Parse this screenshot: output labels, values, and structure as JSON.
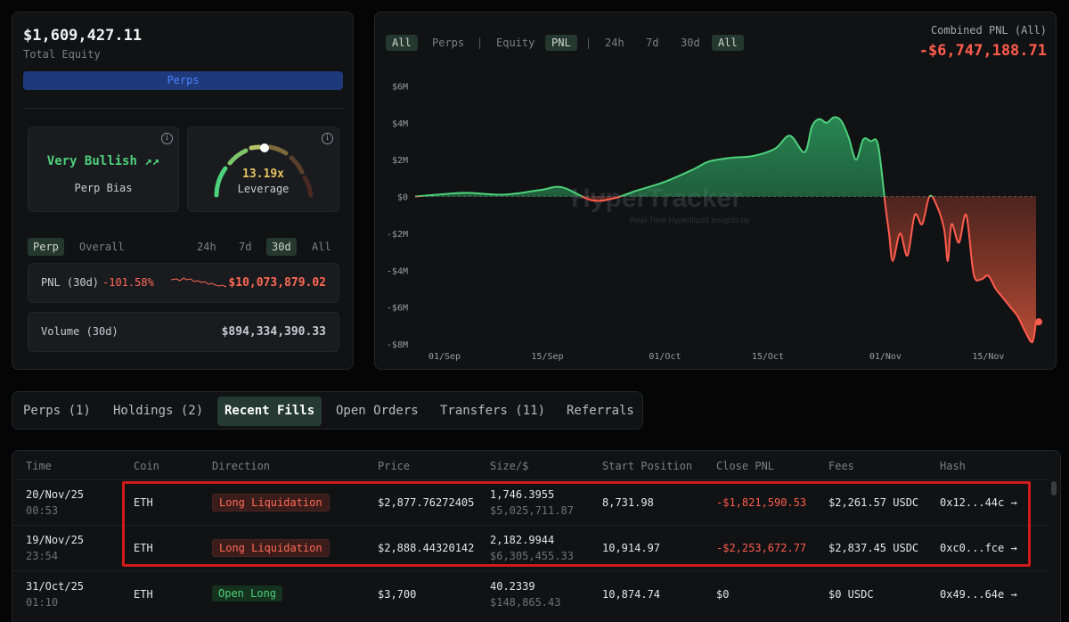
{
  "summary": {
    "total_equity": "$1,609,427.11",
    "total_equity_label": "Total Equity",
    "perps_bar": "Perps",
    "bias": {
      "title": "Very Bullish",
      "label": "Perp Bias"
    },
    "leverage": {
      "value": "13.19x",
      "label": "Leverage",
      "level": 0.55
    },
    "period_tabs": {
      "perp": "Perp",
      "overall": "Overall",
      "d24h": "24h",
      "d7": "7d",
      "d30": "30d",
      "all": "All"
    },
    "pnl": {
      "label": "PNL (30d)",
      "pct": "-101.58%",
      "value": "$10,073,879.02"
    },
    "volume": {
      "label": "Volume (30d)",
      "value": "$894,334,390.33"
    }
  },
  "chart_controls": {
    "all1": "All",
    "perps": "Perps",
    "sep": "|",
    "equity": "Equity",
    "pnl": "PNL",
    "h24": "24h",
    "d7": "7d",
    "d30": "30d",
    "all2": "All"
  },
  "combined": {
    "label": "Combined PNL (All)",
    "value": "-$6,747,188.71"
  },
  "chart_data": {
    "type": "area",
    "watermark": "HyperTracker",
    "watermark_sub": "Real-Time Hyperliquid Insights by",
    "ytick_labels": [
      "$6M",
      "$4M",
      "$2M",
      "$0",
      "-$2M",
      "-$4M",
      "-$6M",
      "-$8M"
    ],
    "yticks": [
      6,
      4,
      2,
      0,
      -2,
      -4,
      -6,
      -8
    ],
    "ylim": [
      -8,
      6.6
    ],
    "xtick_labels": [
      "01/Sep",
      "15/Sep",
      "01/Oct",
      "15/Oct",
      "01/Nov",
      "15/Nov"
    ],
    "xtick_days": [
      4,
      18,
      34,
      48,
      64,
      78
    ],
    "xlim": [
      0,
      84.5
    ],
    "x": [
      0,
      3,
      7,
      12,
      17,
      20,
      24,
      27,
      30,
      34,
      38,
      40,
      43,
      46,
      49,
      51,
      53,
      54,
      55,
      56,
      57,
      58,
      59,
      60,
      61,
      62,
      63,
      64,
      64.5,
      65,
      66,
      67,
      68,
      69,
      70,
      71,
      72,
      72.5,
      73,
      74,
      75,
      76,
      77,
      78,
      79,
      80,
      81,
      82,
      83,
      84,
      84.5
    ],
    "y": [
      0,
      0.1,
      0.2,
      0.1,
      0.35,
      0.5,
      -0.2,
      -0.1,
      0.3,
      0.8,
      1.5,
      1.9,
      2.1,
      2.2,
      2.6,
      3.3,
      2.4,
      3.8,
      4.2,
      4.0,
      4.3,
      4.1,
      3.2,
      2.0,
      3.1,
      3.0,
      2.8,
      -0.5,
      -2.0,
      -3.5,
      -2.0,
      -3.2,
      -1.0,
      -1.5,
      0.0,
      -0.5,
      -1.8,
      -3.5,
      -1.5,
      -2.5,
      -1.0,
      -4.2,
      -4.5,
      -4.3,
      -5.0,
      -5.5,
      -6.0,
      -6.5,
      -7.3,
      -7.9,
      -6.8
    ],
    "series": [
      {
        "values_ref": "y"
      }
    ]
  },
  "main_tabs": [
    "Perps (1)",
    "Holdings (2)",
    "Recent Fills",
    "Open Orders",
    "Transfers (11)",
    "Referrals"
  ],
  "table": {
    "headers": [
      "Time",
      "Coin",
      "Direction",
      "Price",
      "Size/$",
      "Start Position",
      "Close PNL",
      "Fees",
      "Hash"
    ],
    "rows": [
      {
        "date": "20/Nov/25",
        "time": "00:53",
        "coin": "ETH",
        "direction": "Long Liquidation",
        "price": "$2,877.76272405",
        "size": "1,746.3955",
        "usd": "$5,025,711.87",
        "start": "8,731.98",
        "pnl": "-$1,821,590.53",
        "fees": "$2,261.57 USDC",
        "hash": "0x12...44c →"
      },
      {
        "date": "19/Nov/25",
        "time": "23:54",
        "coin": "ETH",
        "direction": "Long Liquidation",
        "price": "$2,888.44320142",
        "size": "2,182.9944",
        "usd": "$6,305,455.33",
        "start": "10,914.97",
        "pnl": "-$2,253,672.77",
        "fees": "$2,837.45 USDC",
        "hash": "0xc0...fce →"
      },
      {
        "date": "31/Oct/25",
        "time": "01:10",
        "coin": "ETH",
        "direction": "Open Long",
        "price": "$3,700",
        "size": "40.2339",
        "usd": "$148,865.43",
        "start": "10,874.74",
        "pnl": "$0",
        "fees": "$0 USDC",
        "hash": "0x49...64e →"
      }
    ]
  }
}
